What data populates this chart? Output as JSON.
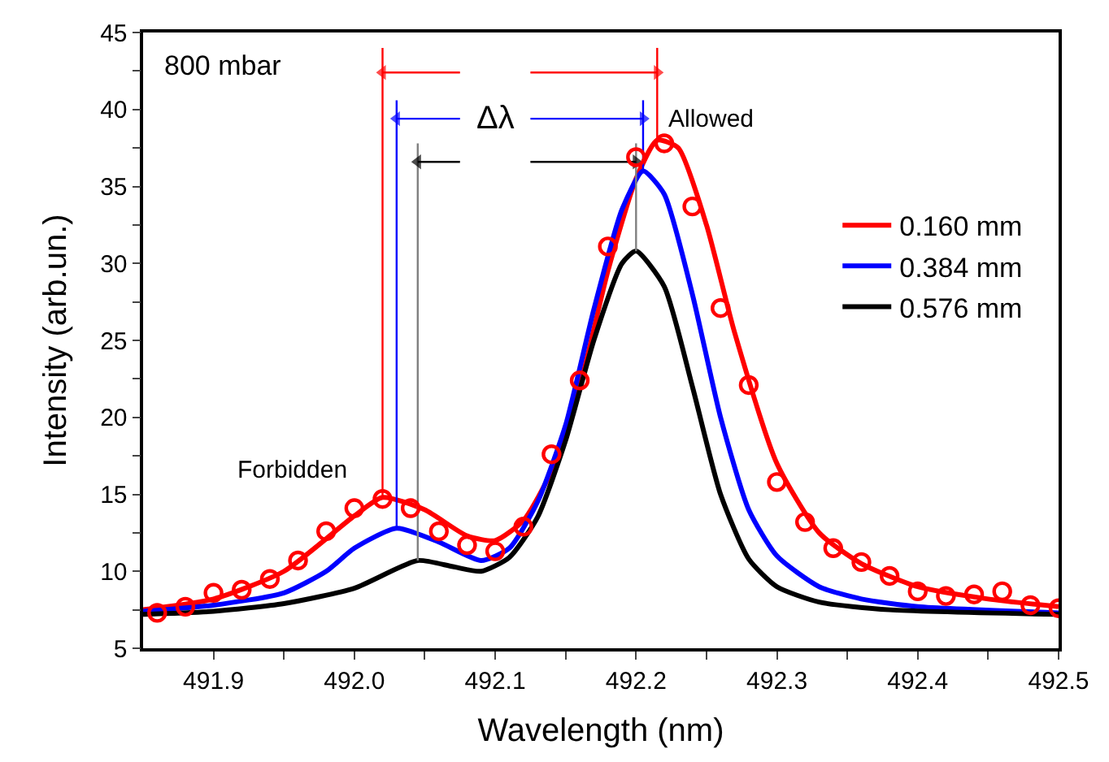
{
  "chart_data": {
    "type": "line",
    "xlabel": "Wavelength (nm)",
    "ylabel": "Intensity (arb.un.)",
    "xlim": [
      491.85,
      492.5
    ],
    "ylim": [
      5,
      45
    ],
    "xticks": [
      491.9,
      {
        "value": 491.95,
        "label": null
      },
      {
        "value": 492.0,
        "label": "492.0"
      },
      {
        "value": 492.05,
        "label": null
      },
      492.1,
      {
        "value": 492.15,
        "label": null
      },
      492.2,
      {
        "value": 492.25,
        "label": null
      },
      492.3,
      {
        "value": 492.35,
        "label": null
      },
      492.4,
      {
        "value": 492.45,
        "label": null
      },
      492.5
    ],
    "yticks": [
      5,
      {
        "value": 7.5,
        "label": null
      },
      10,
      {
        "value": 12.5,
        "label": null
      },
      15,
      {
        "value": 17.5,
        "label": null
      },
      20,
      {
        "value": 22.5,
        "label": null
      },
      25,
      {
        "value": 27.5,
        "label": null
      },
      30,
      {
        "value": 32.5,
        "label": null
      },
      35,
      {
        "value": 37.5,
        "label": null
      },
      40,
      {
        "value": 42.5,
        "label": null
      },
      45
    ],
    "legend": "right",
    "line_style": "solid",
    "series": [
      {
        "name": "0.160 mm",
        "color": "#ff0000",
        "x": [
          491.85,
          491.9,
          491.95,
          492.0,
          492.02,
          492.05,
          492.08,
          492.1,
          492.12,
          492.14,
          492.16,
          492.18,
          492.2,
          492.215,
          492.23,
          492.25,
          492.27,
          492.3,
          492.33,
          492.36,
          492.4,
          492.45,
          492.5
        ],
        "values": [
          7.5,
          8.2,
          10.0,
          13.6,
          14.8,
          14.0,
          12.3,
          12.0,
          13.3,
          16.5,
          22.0,
          29.5,
          35.5,
          38.0,
          37.5,
          32.5,
          25.5,
          17.0,
          12.5,
          10.5,
          9.0,
          8.2,
          7.7
        ]
      },
      {
        "name": "0.384 mm",
        "color": "#0000ff",
        "x": [
          491.85,
          491.9,
          491.95,
          491.98,
          492.0,
          492.03,
          492.06,
          492.09,
          492.11,
          492.13,
          492.15,
          492.17,
          492.19,
          492.205,
          492.22,
          492.24,
          492.26,
          492.28,
          492.3,
          492.33,
          492.36,
          492.4,
          492.5
        ],
        "values": [
          7.4,
          7.8,
          8.6,
          10.0,
          11.5,
          12.8,
          11.9,
          10.7,
          11.5,
          14.5,
          19.5,
          27.0,
          33.5,
          36.0,
          34.5,
          28.0,
          20.0,
          14.0,
          11.0,
          9.0,
          8.2,
          7.7,
          7.3
        ]
      },
      {
        "name": "0.576 mm",
        "color": "#000000",
        "x": [
          491.85,
          491.9,
          491.95,
          492.0,
          492.045,
          492.07,
          492.09,
          492.11,
          492.13,
          492.15,
          492.17,
          492.19,
          492.2,
          492.22,
          492.24,
          492.26,
          492.28,
          492.3,
          492.33,
          492.38,
          492.5
        ],
        "values": [
          7.2,
          7.4,
          7.9,
          8.9,
          10.7,
          10.3,
          10.0,
          10.9,
          13.5,
          18.5,
          25.0,
          30.0,
          30.8,
          28.5,
          22.0,
          15.0,
          10.8,
          9.0,
          8.0,
          7.5,
          7.2
        ]
      },
      {
        "color": "#ff0000",
        "x": [
          492.02,
          492.02
        ],
        "values": [
          14.8,
          44
        ]
      },
      {
        "color": "#ff0000",
        "x": [
          492.215,
          492.215
        ],
        "values": [
          38,
          44
        ]
      },
      {
        "color": "#0000ff",
        "x": [
          492.03,
          492.03
        ],
        "values": [
          12.8,
          40.6
        ]
      },
      {
        "color": "#0000ff",
        "x": [
          492.205,
          492.205
        ],
        "values": [
          36,
          40.6
        ]
      },
      {
        "color": "#808080",
        "x": [
          492.045,
          492.045
        ],
        "values": [
          10.7,
          37.8
        ]
      },
      {
        "color": "#808080",
        "x": [
          492.2,
          492.2
        ],
        "values": [
          30.8,
          37.8
        ]
      },
      {
        "color": "#ff0000",
        "marker": "triangle",
        "x": [
          492.075,
          492.02
        ],
        "values": [
          42.4,
          42.4
        ]
      },
      {
        "color": "#ff0000",
        "marker": "triangle",
        "x": [
          492.125,
          492.215
        ],
        "values": [
          42.4,
          42.4
        ]
      },
      {
        "color": "#0000ff",
        "marker": "triangle",
        "x": [
          492.075,
          492.03
        ],
        "values": [
          39.4,
          39.4
        ]
      },
      {
        "color": "#0000ff",
        "marker": "triangle",
        "x": [
          492.125,
          492.205
        ],
        "values": [
          39.4,
          39.4
        ]
      },
      {
        "color": "#000000",
        "marker": "triangle",
        "x": [
          492.075,
          492.045
        ],
        "values": [
          36.6,
          36.6
        ]
      },
      {
        "color": "#000000",
        "marker": "triangle",
        "x": [
          492.125,
          492.2
        ],
        "values": [
          36.6,
          36.6
        ]
      },
      {
        "type": "scatter",
        "marker": "circle",
        "color": "#ff0000",
        "x": [
          491.86,
          491.88,
          491.9,
          491.92,
          491.94,
          491.96,
          491.98,
          492.0,
          492.02,
          492.04,
          492.06,
          492.08,
          492.1,
          492.12,
          492.14,
          492.16,
          492.18,
          492.2,
          492.22,
          492.24,
          492.26,
          492.28,
          492.3,
          492.32,
          492.34,
          492.36,
          492.38,
          492.4,
          492.42,
          492.44,
          492.46,
          492.48,
          492.5
        ],
        "values": [
          7.3,
          7.7,
          8.6,
          8.8,
          9.5,
          10.7,
          12.6,
          14.1,
          14.7,
          14.1,
          12.6,
          11.7,
          11.3,
          12.9,
          17.6,
          22.4,
          31.1,
          36.9,
          37.8,
          33.7,
          27.1,
          22.1,
          15.8,
          13.2,
          11.5,
          10.6,
          9.7,
          8.7,
          8.4,
          8.5,
          8.7,
          7.8,
          7.6
        ]
      }
    ],
    "annotations": [
      "800 mbar",
      "Forbidden",
      "Allowed",
      "Δλ"
    ]
  }
}
